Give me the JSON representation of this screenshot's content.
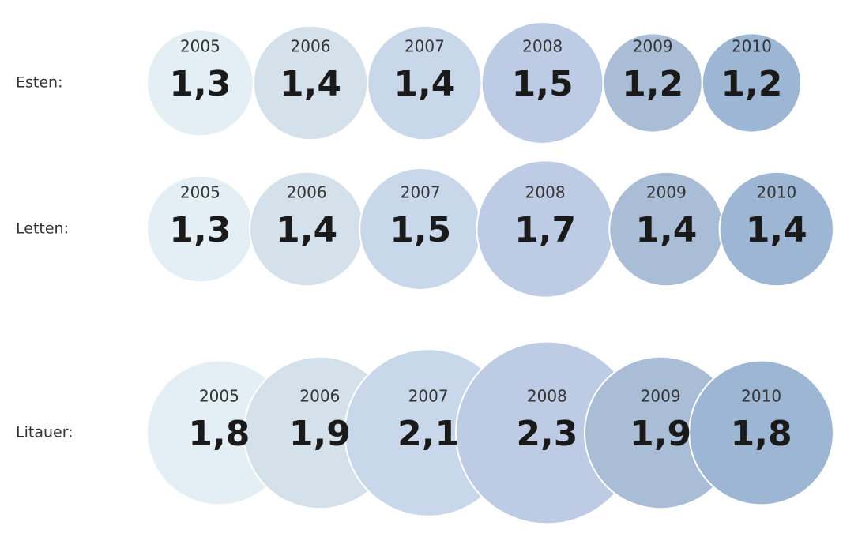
{
  "chart_data": {
    "type": "bubble",
    "categories": [
      "2005",
      "2006",
      "2007",
      "2008",
      "2009",
      "2010"
    ],
    "colors": [
      "#e4eef5",
      "#d4e0ea",
      "#c8d8ea",
      "#bdcbe4",
      "#a9bdd7",
      "#9db6d4"
    ],
    "series": [
      {
        "name": "Esten:",
        "values": [
          1.3,
          1.4,
          1.4,
          1.5,
          1.2,
          1.2
        ],
        "value_labels": [
          "1,3",
          "1,4",
          "1,4",
          "1,5",
          "1,2",
          "1,2"
        ]
      },
      {
        "name": "Letten:",
        "values": [
          1.3,
          1.4,
          1.5,
          1.7,
          1.4,
          1.4
        ],
        "value_labels": [
          "1,3",
          "1,4",
          "1,5",
          "1,7",
          "1,4",
          "1,4"
        ]
      },
      {
        "name": "Litauer:",
        "values": [
          1.8,
          1.9,
          2.1,
          2.3,
          1.9,
          1.8
        ],
        "value_labels": [
          "1,8",
          "1,9",
          "2,1",
          "2,3",
          "1,9",
          "1,8"
        ]
      }
    ]
  }
}
